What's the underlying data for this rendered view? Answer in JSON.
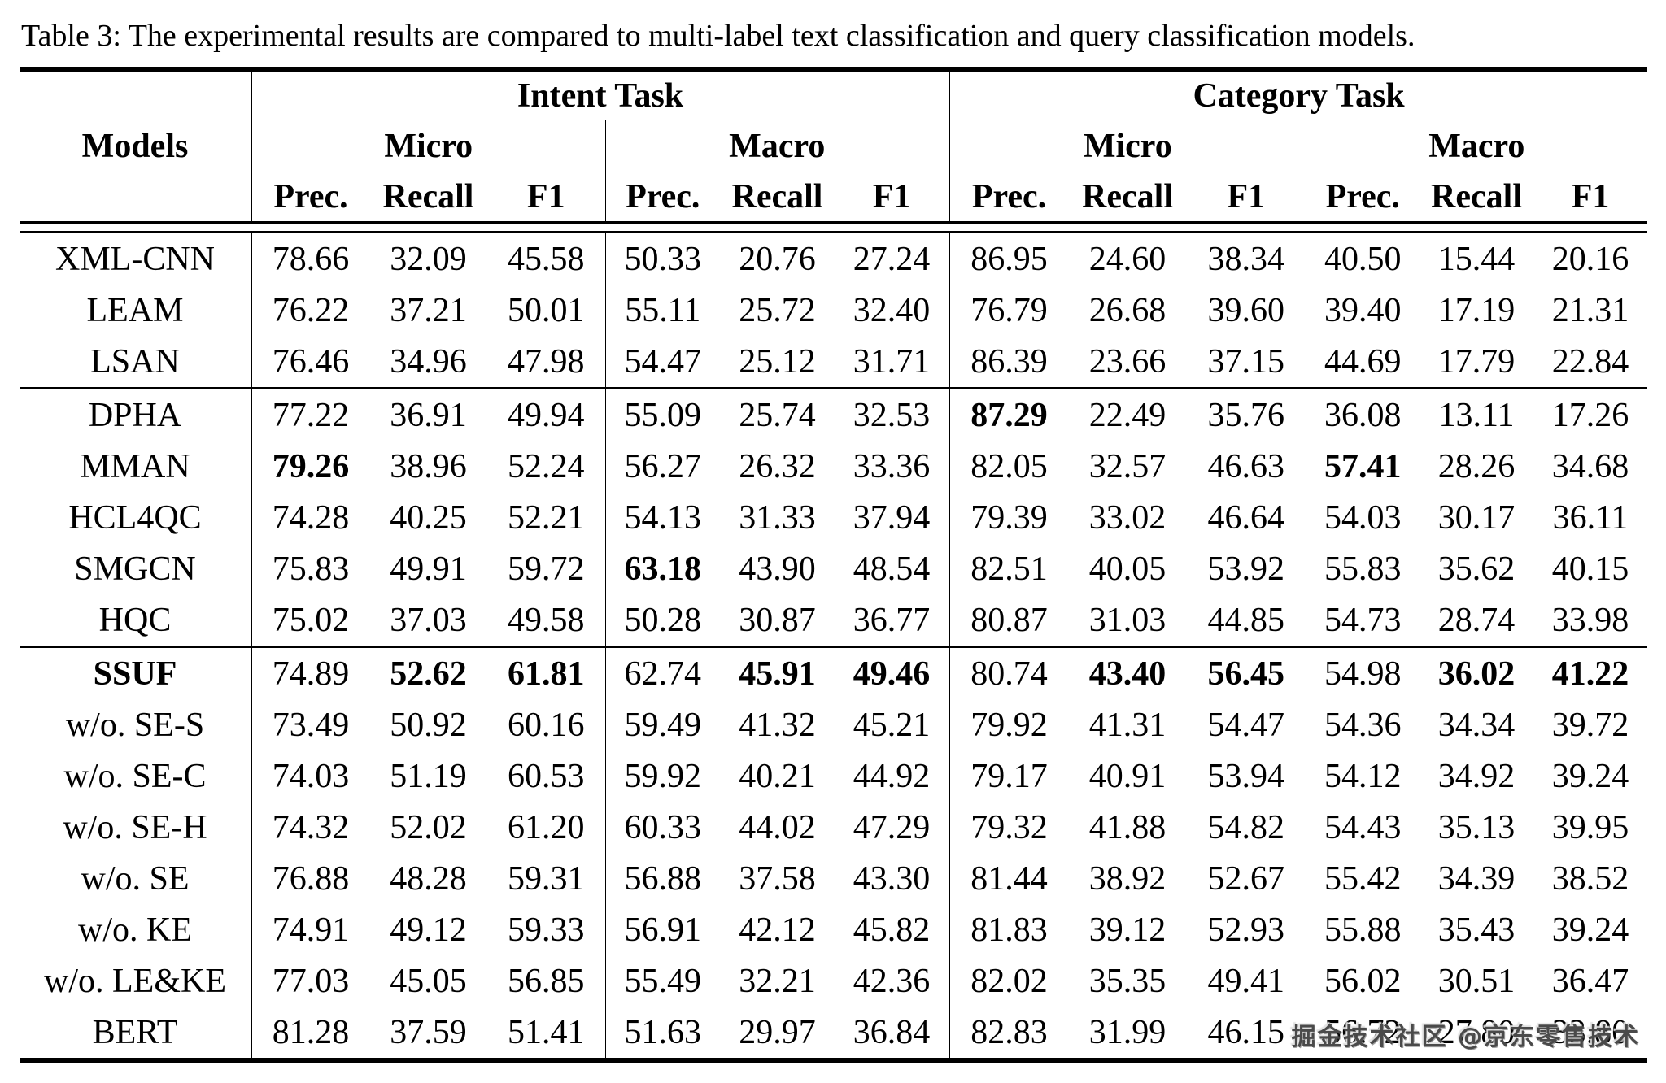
{
  "caption": "Table 3: The experimental results are compared to multi-label text classification and query classification models.",
  "watermark": "掘金技术社区 @京东零售技术",
  "header": {
    "models_label": "Models",
    "intent_task": "Intent Task",
    "category_task": "Category Task",
    "micro": "Micro",
    "macro": "Macro",
    "prec": "Prec.",
    "recall": "Recall",
    "f1": "F1"
  },
  "table": {
    "column_structure": [
      "Intent Task Micro Prec.",
      "Intent Task Micro Recall",
      "Intent Task Micro F1",
      "Intent Task Macro Prec.",
      "Intent Task Macro Recall",
      "Intent Task Macro F1",
      "Category Task Micro Prec.",
      "Category Task Micro Recall",
      "Category Task Micro F1",
      "Category Task Macro Prec.",
      "Category Task Macro Recall",
      "Category Task Macro F1"
    ],
    "groups": [
      {
        "rows": [
          {
            "model": "XML-CNN",
            "bold_model": false,
            "values": [
              "78.66",
              "32.09",
              "45.58",
              "50.33",
              "20.76",
              "27.24",
              "86.95",
              "24.60",
              "38.34",
              "40.50",
              "15.44",
              "20.16"
            ],
            "bold": []
          },
          {
            "model": "LEAM",
            "bold_model": false,
            "values": [
              "76.22",
              "37.21",
              "50.01",
              "55.11",
              "25.72",
              "32.40",
              "76.79",
              "26.68",
              "39.60",
              "39.40",
              "17.19",
              "21.31"
            ],
            "bold": []
          },
          {
            "model": "LSAN",
            "bold_model": false,
            "values": [
              "76.46",
              "34.96",
              "47.98",
              "54.47",
              "25.12",
              "31.71",
              "86.39",
              "23.66",
              "37.15",
              "44.69",
              "17.79",
              "22.84"
            ],
            "bold": []
          }
        ]
      },
      {
        "rows": [
          {
            "model": "DPHA",
            "bold_model": false,
            "values": [
              "77.22",
              "36.91",
              "49.94",
              "55.09",
              "25.74",
              "32.53",
              "87.29",
              "22.49",
              "35.76",
              "36.08",
              "13.11",
              "17.26"
            ],
            "bold": [
              6
            ]
          },
          {
            "model": "MMAN",
            "bold_model": false,
            "values": [
              "79.26",
              "38.96",
              "52.24",
              "56.27",
              "26.32",
              "33.36",
              "82.05",
              "32.57",
              "46.63",
              "57.41",
              "28.26",
              "34.68"
            ],
            "bold": [
              0,
              9
            ]
          },
          {
            "model": "HCL4QC",
            "bold_model": false,
            "values": [
              "74.28",
              "40.25",
              "52.21",
              "54.13",
              "31.33",
              "37.94",
              "79.39",
              "33.02",
              "46.64",
              "54.03",
              "30.17",
              "36.11"
            ],
            "bold": []
          },
          {
            "model": "SMGCN",
            "bold_model": false,
            "values": [
              "75.83",
              "49.91",
              "59.72",
              "63.18",
              "43.90",
              "48.54",
              "82.51",
              "40.05",
              "53.92",
              "55.83",
              "35.62",
              "40.15"
            ],
            "bold": [
              3
            ]
          },
          {
            "model": "HQC",
            "bold_model": false,
            "values": [
              "75.02",
              "37.03",
              "49.58",
              "50.28",
              "30.87",
              "36.77",
              "80.87",
              "31.03",
              "44.85",
              "54.73",
              "28.74",
              "33.98"
            ],
            "bold": []
          }
        ]
      },
      {
        "rows": [
          {
            "model": "SSUF",
            "bold_model": true,
            "values": [
              "74.89",
              "52.62",
              "61.81",
              "62.74",
              "45.91",
              "49.46",
              "80.74",
              "43.40",
              "56.45",
              "54.98",
              "36.02",
              "41.22"
            ],
            "bold": [
              1,
              2,
              4,
              5,
              7,
              8,
              10,
              11
            ]
          },
          {
            "model": "w/o. SE-S",
            "bold_model": false,
            "values": [
              "73.49",
              "50.92",
              "60.16",
              "59.49",
              "41.32",
              "45.21",
              "79.92",
              "41.31",
              "54.47",
              "54.36",
              "34.34",
              "39.72"
            ],
            "bold": []
          },
          {
            "model": "w/o. SE-C",
            "bold_model": false,
            "values": [
              "74.03",
              "51.19",
              "60.53",
              "59.92",
              "40.21",
              "44.92",
              "79.17",
              "40.91",
              "53.94",
              "54.12",
              "34.92",
              "39.24"
            ],
            "bold": []
          },
          {
            "model": "w/o. SE-H",
            "bold_model": false,
            "values": [
              "74.32",
              "52.02",
              "61.20",
              "60.33",
              "44.02",
              "47.29",
              "79.32",
              "41.88",
              "54.82",
              "54.43",
              "35.13",
              "39.95"
            ],
            "bold": []
          },
          {
            "model": "w/o. SE",
            "bold_model": false,
            "values": [
              "76.88",
              "48.28",
              "59.31",
              "56.88",
              "37.58",
              "43.30",
              "81.44",
              "38.92",
              "52.67",
              "55.42",
              "34.39",
              "38.52"
            ],
            "bold": []
          },
          {
            "model": "w/o. KE",
            "bold_model": false,
            "values": [
              "74.91",
              "49.12",
              "59.33",
              "56.91",
              "42.12",
              "45.82",
              "81.83",
              "39.12",
              "52.93",
              "55.88",
              "35.43",
              "39.24"
            ],
            "bold": []
          },
          {
            "model": "w/o. LE&KE",
            "bold_model": false,
            "values": [
              "77.03",
              "45.05",
              "56.85",
              "55.49",
              "32.21",
              "42.36",
              "82.02",
              "35.35",
              "49.41",
              "56.02",
              "30.51",
              "36.47"
            ],
            "bold": []
          },
          {
            "model": "BERT",
            "bold_model": false,
            "values": [
              "81.28",
              "37.59",
              "51.41",
              "51.63",
              "29.97",
              "36.84",
              "82.83",
              "31.99",
              "46.15",
              "56.72",
              "27.80",
              "33.80"
            ],
            "bold": []
          }
        ]
      }
    ]
  }
}
